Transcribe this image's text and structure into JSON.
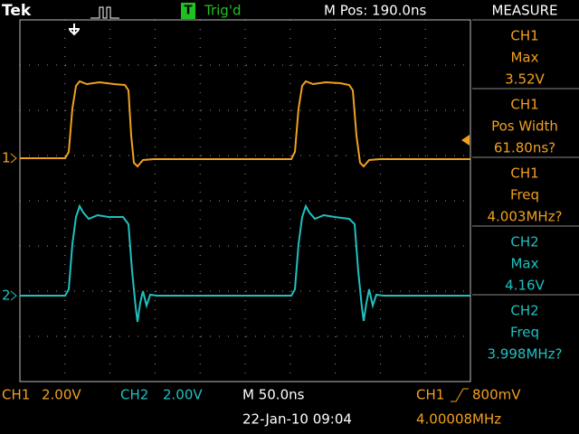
{
  "header": {
    "brand": "Tek",
    "trigger_icon": "T",
    "trigger_status": "Trig'd",
    "position": "M Pos: 190.0ns"
  },
  "measure": {
    "title": "MEASURE",
    "items": [
      {
        "source": "CH1",
        "type": "Max",
        "value": "3.52V"
      },
      {
        "source": "CH1",
        "type": "Pos Width",
        "value": "61.80ns?"
      },
      {
        "source": "CH1",
        "type": "Freq",
        "value": "4.003MHz?"
      },
      {
        "source": "CH2",
        "type": "Max",
        "value": "4.16V"
      },
      {
        "source": "CH2",
        "type": "Freq",
        "value": "3.998MHz?"
      }
    ]
  },
  "markers": {
    "ch1": "1",
    "ch2": "2"
  },
  "footer": {
    "ch1": "CH1",
    "ch1_scale": "2.00V",
    "ch2": "CH2",
    "ch2_scale": "2.00V",
    "timebase": "M 50.0ns",
    "datetime": "22-Jan-10 09:04",
    "trigger_source": "CH1",
    "trigger_level": "800mV",
    "trigger_freq": "4.00008MHz"
  }
}
